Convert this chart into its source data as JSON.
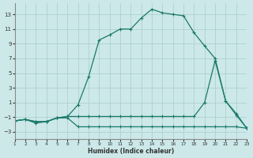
{
  "xlabel": "Humidex (Indice chaleur)",
  "bg_color": "#cce8e8",
  "grid_color": "#aacccc",
  "line_color": "#1a7a6a",
  "x_ticks": [
    1,
    2,
    3,
    4,
    5,
    6,
    7,
    8,
    9,
    10,
    11,
    12,
    13,
    14,
    15,
    16,
    17,
    18,
    19,
    20,
    21,
    22,
    23
  ],
  "y_ticks": [
    -3,
    -1,
    1,
    3,
    5,
    7,
    9,
    11,
    13
  ],
  "xlim": [
    1,
    23
  ],
  "ylim": [
    -4.0,
    14.5
  ],
  "line1_y": [
    -1.5,
    -1.3,
    -1.8,
    -1.6,
    -1.1,
    -1.1,
    -2.3,
    -2.3,
    -2.3,
    -2.3,
    -2.3,
    -2.3,
    -2.3,
    -2.3,
    -2.3,
    -2.3,
    -2.3,
    -2.3,
    -2.3,
    -2.3,
    -2.3,
    -2.3,
    -2.5
  ],
  "line2_y": [
    -1.5,
    -1.3,
    -1.6,
    -1.6,
    -1.1,
    -0.9,
    0.7,
    4.5,
    9.5,
    10.2,
    11.0,
    11.0,
    12.5,
    13.7,
    13.2,
    13.0,
    12.8,
    10.5,
    8.7,
    7.0,
    1.2,
    -0.5,
    -2.5
  ],
  "line3_y": [
    -1.5,
    -1.3,
    -1.6,
    -1.6,
    -1.1,
    -0.9,
    -0.9,
    -0.9,
    -0.9,
    -0.9,
    -0.9,
    -0.9,
    -0.9,
    -0.9,
    -0.9,
    -0.9,
    -0.9,
    -0.9,
    1.0,
    6.7,
    1.2,
    -0.7,
    -2.5
  ]
}
